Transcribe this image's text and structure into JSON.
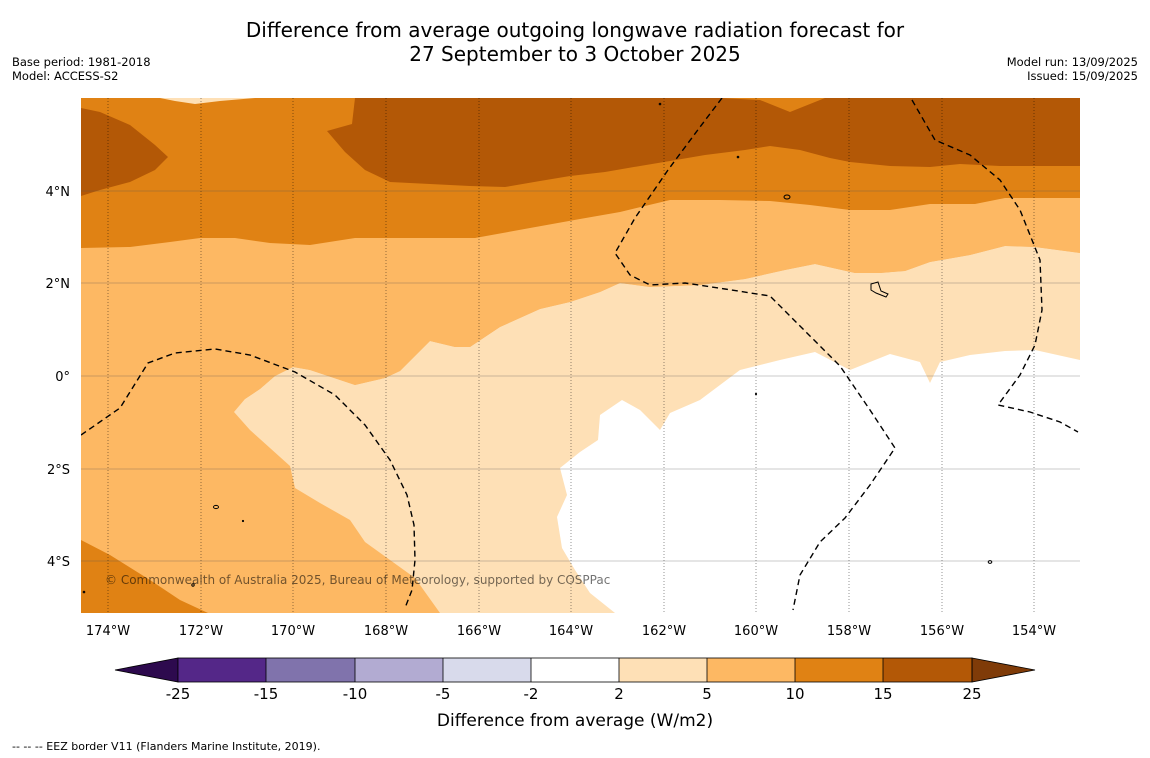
{
  "title": {
    "line1": "Difference from average outgoing longwave radiation forecast for",
    "line2": "27 September to 3 October 2025"
  },
  "meta_left": {
    "base_period": "Base period: 1981-2018",
    "model": "Model: ACCESS-S2"
  },
  "meta_right": {
    "model_run": "Model run: 13/09/2025",
    "issued": "Issued: 15/09/2025"
  },
  "map": {
    "x_ticks": [
      "174°W",
      "172°W",
      "170°W",
      "168°W",
      "166°W",
      "164°W",
      "162°W",
      "160°W",
      "158°W",
      "156°W",
      "154°W"
    ],
    "y_ticks": [
      "4°N",
      "2°N",
      "0°",
      "2°S",
      "4°S"
    ],
    "copyright": "© Commonwealth of Australia 2025, Bureau of Meteorology, supported by COSPPac"
  },
  "colorbar": {
    "tick_labels": [
      "-25",
      "-15",
      "-10",
      "-5",
      "-2",
      "2",
      "5",
      "10",
      "15",
      "25"
    ],
    "label": "Difference from average (W/m2)",
    "colors": {
      "lt_m25": "#2d0a4e",
      "m25_m15": "#542788",
      "m15_m10": "#8073ac",
      "m10_m5": "#b2abd2",
      "m5_m2": "#d8daeb",
      "m2_2": "#ffffff",
      "2_5": "#fee0b6",
      "5_10": "#fdb863",
      "10_15": "#e08214",
      "15_25": "#b35806",
      "gt_25": "#7f3b08"
    }
  },
  "footer": "--  --  -- EEZ border V11 (Flanders Marine Institute, 2019)."
}
